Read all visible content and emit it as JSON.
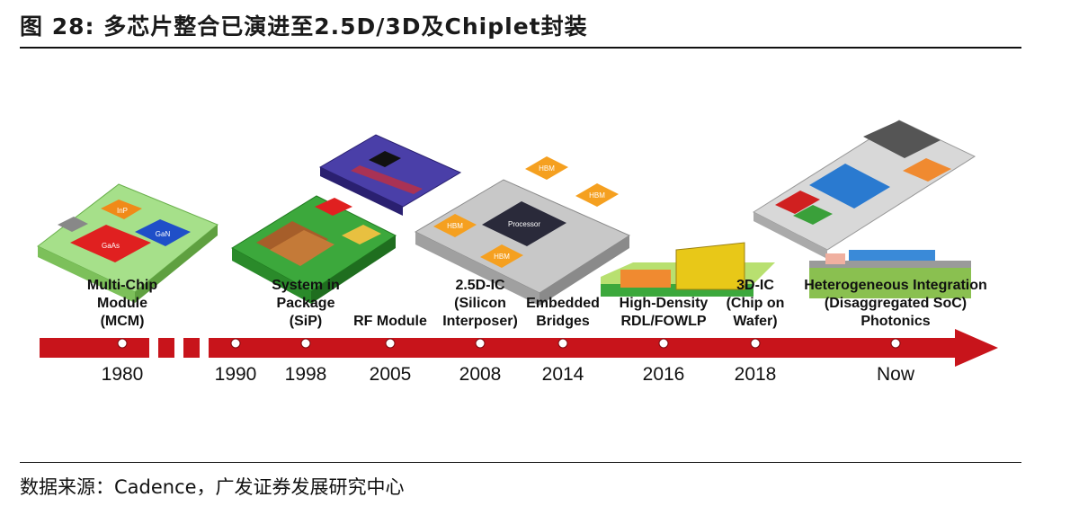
{
  "title": "图 28: 多芯片整合已演进至2.5D/3D及Chiplet封装",
  "source": "数据来源：Cadence，广发证券发展研究中心",
  "colors": {
    "arrow": "#c8141b",
    "dot": "#ffffff"
  },
  "milestones": [
    {
      "year": "1980",
      "label": [
        "Multi-Chip",
        "Module",
        "(MCM)"
      ]
    },
    {
      "year": "1990",
      "label": []
    },
    {
      "year": "1998",
      "label": [
        "System in",
        "Package",
        "(SiP)"
      ]
    },
    {
      "year": "2005",
      "label": [
        "RF Module"
      ]
    },
    {
      "year": "2008",
      "label": [
        "2.5D-IC",
        "(Silicon",
        "Interposer)"
      ]
    },
    {
      "year": "2014",
      "label": [
        "Embedded",
        "Bridges"
      ]
    },
    {
      "year": "2016",
      "label": [
        "High-Density",
        "RDL/FOWLP"
      ]
    },
    {
      "year": "2018",
      "label": [
        "3D-IC",
        "(Chip on",
        "Wafer)"
      ]
    },
    {
      "year": "Now",
      "label": [
        "Heterogeneous Integration",
        "(Disaggregated SoC)",
        "Photonics"
      ]
    }
  ],
  "chip_labels": {
    "mcm": [
      "InP",
      "GaAs",
      "GaN"
    ],
    "interposer": [
      "HBM",
      "HBM",
      "HBM",
      "HBM",
      "Processor"
    ]
  }
}
